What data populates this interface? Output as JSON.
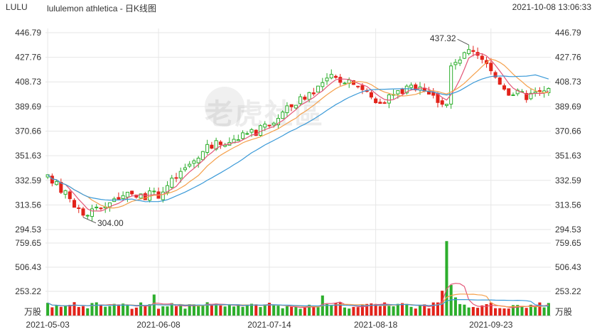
{
  "header": {
    "symbol": "LULU",
    "title": "lululemon athletica - 日K线图",
    "datetime": "2021-10-08 13:06:33"
  },
  "watermark": {
    "text": "老虎社區"
  },
  "colors": {
    "up": "#2cae2c",
    "down": "#e2231a",
    "ma1": "#e35577",
    "ma2": "#f5a04b",
    "ma3": "#3b9ad8",
    "grid": "#e6e6e6",
    "axis_text": "#333333"
  },
  "chart_data": {
    "type": "candlestick",
    "price_axis": {
      "ylim": [
        294.53,
        446.79
      ],
      "tick_labels": [
        "446.79",
        "427.76",
        "408.73",
        "389.69",
        "370.66",
        "351.63",
        "332.59",
        "313.56",
        "294.53"
      ]
    },
    "volume_axis": {
      "unit_label": "万股",
      "ylim": [
        0,
        759.65
      ],
      "tick_labels": [
        "759.65",
        "506.43",
        "253.22"
      ]
    },
    "x_ticks": [
      {
        "label": "2021-05-03",
        "index": 0
      },
      {
        "label": "2021-06-08",
        "index": 25
      },
      {
        "label": "2021-07-14",
        "index": 50
      },
      {
        "label": "2021-08-18",
        "index": 74
      },
      {
        "label": "2021-09-23",
        "index": 100
      }
    ],
    "annotations": [
      {
        "label": "437.32",
        "index": 95,
        "value": 437.32,
        "side": "left"
      },
      {
        "label": "304.00",
        "index": 8,
        "value": 304.0,
        "side": "right"
      }
    ],
    "days": 114,
    "candles": [],
    "volumes": []
  }
}
